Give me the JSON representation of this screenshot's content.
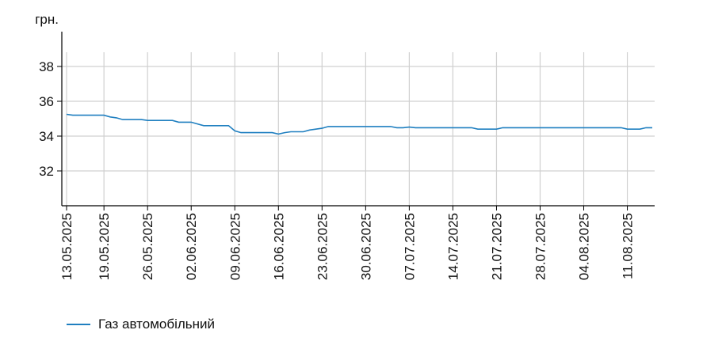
{
  "chart_data": {
    "type": "line",
    "ylabel": "грн.",
    "xlabel": "",
    "ylim": [
      30,
      40
    ],
    "yticks": [
      32,
      34,
      36,
      38
    ],
    "grid": true,
    "legend_position": "bottom-left",
    "colors": {
      "series": "#1f7fc0",
      "grid": "#d0d0d0",
      "axis": "#000000"
    },
    "x_tick_labels": [
      "13.05.2025",
      "19.05.2025",
      "26.05.2025",
      "02.06.2025",
      "09.06.2025",
      "16.06.2025",
      "23.06.2025",
      "30.06.2025",
      "07.07.2025",
      "14.07.2025",
      "21.07.2025",
      "28.07.2025",
      "04.08.2025",
      "11.08.2025"
    ],
    "series": [
      {
        "name": "Газ автомобільний",
        "points": [
          [
            "13.05.2025",
            35.25
          ],
          [
            "14.05.2025",
            35.2
          ],
          [
            "19.05.2025",
            35.2
          ],
          [
            "20.05.2025",
            35.1
          ],
          [
            "21.05.2025",
            35.05
          ],
          [
            "22.05.2025",
            34.95
          ],
          [
            "25.05.2025",
            34.95
          ],
          [
            "26.05.2025",
            34.9
          ],
          [
            "30.05.2025",
            34.9
          ],
          [
            "31.05.2025",
            34.8
          ],
          [
            "02.06.2025",
            34.8
          ],
          [
            "03.06.2025",
            34.7
          ],
          [
            "04.06.2025",
            34.6
          ],
          [
            "08.06.2025",
            34.6
          ],
          [
            "09.06.2025",
            34.3
          ],
          [
            "10.06.2025",
            34.2
          ],
          [
            "15.06.2025",
            34.2
          ],
          [
            "16.06.2025",
            34.12
          ],
          [
            "17.06.2025",
            34.2
          ],
          [
            "18.06.2025",
            34.25
          ],
          [
            "20.06.2025",
            34.25
          ],
          [
            "21.06.2025",
            34.35
          ],
          [
            "22.06.2025",
            34.4
          ],
          [
            "23.06.2025",
            34.45
          ],
          [
            "24.06.2025",
            34.55
          ],
          [
            "04.07.2025",
            34.55
          ],
          [
            "05.07.2025",
            34.48
          ],
          [
            "06.07.2025",
            34.48
          ],
          [
            "07.07.2025",
            34.52
          ],
          [
            "08.07.2025",
            34.48
          ],
          [
            "17.07.2025",
            34.48
          ],
          [
            "18.07.2025",
            34.4
          ],
          [
            "21.07.2025",
            34.4
          ],
          [
            "22.07.2025",
            34.48
          ],
          [
            "10.08.2025",
            34.48
          ],
          [
            "11.08.2025",
            34.4
          ],
          [
            "13.08.2025",
            34.4
          ],
          [
            "14.08.2025",
            34.48
          ],
          [
            "15.08.2025",
            34.48
          ]
        ]
      }
    ]
  }
}
